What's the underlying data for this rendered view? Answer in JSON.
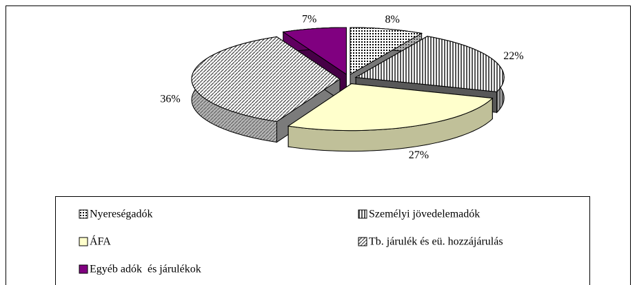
{
  "chart_data": {
    "type": "pie",
    "categories": [
      "Nyereségadók",
      "Személyi jövedelemadók",
      "ÁFA",
      "Tb. járulék és eü. hozzájárulás",
      "Egyéb adók  és járulékok"
    ],
    "values": [
      8,
      22,
      27,
      36,
      7
    ],
    "value_labels": [
      "8%",
      "22%",
      "27%",
      "36%",
      "7%"
    ],
    "colors": [
      "#d8d8d8",
      "#a0a0a0",
      "#ffffcc",
      "#e0e0e0",
      "#800080"
    ],
    "legend": "bottom"
  }
}
